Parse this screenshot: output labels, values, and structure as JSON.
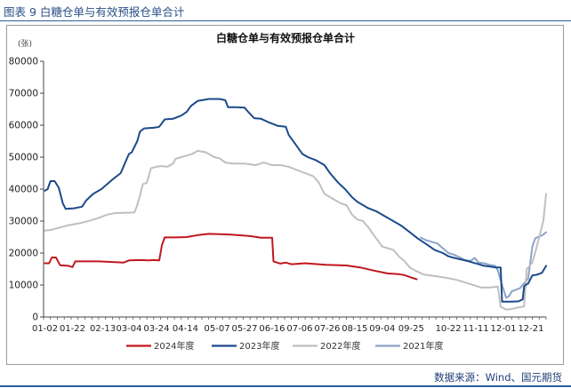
{
  "figure": {
    "title": "图表 9  白糖仓单与有效预报仓单合计",
    "source": "数据来源：Wind、国元期货"
  },
  "chart_data": {
    "type": "line",
    "title": "白糖仓单与有效预报仓单合计",
    "ylabel": "(张)",
    "xlabel": "",
    "ylim": [
      0,
      80000
    ],
    "yticks": [
      0,
      10000,
      20000,
      30000,
      40000,
      50000,
      60000,
      70000,
      80000
    ],
    "ytick_labels": [
      "0",
      "10000",
      "20000",
      "30000",
      "40000",
      "50000",
      "60000",
      "70000",
      "80000"
    ],
    "x_domain": [
      0,
      365
    ],
    "x_tick_labels": [
      "01-02",
      "01-22",
      "02-13",
      "03-04",
      "03-24",
      "04-14",
      "05-07",
      "05-27",
      "06-16",
      "07-06",
      "07-26",
      "08-15",
      "09-04",
      "09-25",
      "10-22",
      "11-11",
      "12-01",
      "12-21"
    ],
    "x_tick_positions": [
      1,
      21,
      43,
      62,
      82,
      103,
      126,
      146,
      166,
      186,
      206,
      226,
      246,
      267,
      294,
      314,
      334,
      354
    ],
    "grid": false,
    "legend_position": "bottom",
    "series": [
      {
        "name": "2024年度",
        "color": "#c0171f",
        "points": [
          [
            1,
            16800
          ],
          [
            4,
            16800
          ],
          [
            6,
            18600
          ],
          [
            9,
            18600
          ],
          [
            12,
            16200
          ],
          [
            18,
            16000
          ],
          [
            21,
            15600
          ],
          [
            23,
            17400
          ],
          [
            40,
            17400
          ],
          [
            50,
            17200
          ],
          [
            58,
            17000
          ],
          [
            62,
            17700
          ],
          [
            70,
            17800
          ],
          [
            76,
            17700
          ],
          [
            80,
            17800
          ],
          [
            84,
            17700
          ],
          [
            86,
            22500
          ],
          [
            88,
            24900
          ],
          [
            96,
            24900
          ],
          [
            104,
            25000
          ],
          [
            112,
            25600
          ],
          [
            120,
            26000
          ],
          [
            135,
            25800
          ],
          [
            150,
            25300
          ],
          [
            158,
            24800
          ],
          [
            166,
            24800
          ],
          [
            167,
            17400
          ],
          [
            172,
            16700
          ],
          [
            176,
            17000
          ],
          [
            180,
            16500
          ],
          [
            190,
            16800
          ],
          [
            205,
            16300
          ],
          [
            220,
            16100
          ],
          [
            230,
            15500
          ],
          [
            240,
            14500
          ],
          [
            250,
            13600
          ],
          [
            258,
            13400
          ],
          [
            262,
            13100
          ],
          [
            268,
            12200
          ],
          [
            271,
            11800
          ]
        ]
      },
      {
        "name": "2023年度",
        "color": "#1c4a8a",
        "points": [
          [
            1,
            39500
          ],
          [
            3,
            40000
          ],
          [
            5,
            42500
          ],
          [
            8,
            42500
          ],
          [
            11,
            40500
          ],
          [
            14,
            35500
          ],
          [
            16,
            33800
          ],
          [
            22,
            34000
          ],
          [
            28,
            34500
          ],
          [
            31,
            36500
          ],
          [
            36,
            38500
          ],
          [
            42,
            40000
          ],
          [
            50,
            43000
          ],
          [
            56,
            45000
          ],
          [
            59,
            48000
          ],
          [
            62,
            51000
          ],
          [
            64,
            51500
          ],
          [
            68,
            55000
          ],
          [
            70,
            58000
          ],
          [
            73,
            59000
          ],
          [
            80,
            59200
          ],
          [
            84,
            59500
          ],
          [
            88,
            61800
          ],
          [
            94,
            62000
          ],
          [
            100,
            63000
          ],
          [
            104,
            64200
          ],
          [
            107,
            66000
          ],
          [
            112,
            67600
          ],
          [
            120,
            68200
          ],
          [
            128,
            68200
          ],
          [
            132,
            67800
          ],
          [
            134,
            65600
          ],
          [
            140,
            65600
          ],
          [
            146,
            65500
          ],
          [
            149,
            64000
          ],
          [
            153,
            62200
          ],
          [
            158,
            62000
          ],
          [
            163,
            61000
          ],
          [
            170,
            59800
          ],
          [
            176,
            59500
          ],
          [
            178,
            57000
          ],
          [
            183,
            54000
          ],
          [
            188,
            51000
          ],
          [
            192,
            50000
          ],
          [
            198,
            49000
          ],
          [
            204,
            47500
          ],
          [
            208,
            45000
          ],
          [
            214,
            42000
          ],
          [
            219,
            40000
          ],
          [
            224,
            37500
          ],
          [
            228,
            36000
          ],
          [
            232,
            35000
          ],
          [
            236,
            34000
          ],
          [
            242,
            33000
          ],
          [
            248,
            31500
          ],
          [
            254,
            30000
          ],
          [
            260,
            28500
          ],
          [
            266,
            26500
          ],
          [
            272,
            24500
          ],
          [
            278,
            22800
          ],
          [
            284,
            21000
          ],
          [
            290,
            20000
          ],
          [
            294,
            19000
          ],
          [
            298,
            18500
          ],
          [
            303,
            18000
          ],
          [
            308,
            17500
          ],
          [
            312,
            17000
          ],
          [
            316,
            16500
          ],
          [
            320,
            16000
          ],
          [
            324,
            15800
          ],
          [
            328,
            15500
          ],
          [
            332,
            15500
          ],
          [
            333,
            4800
          ],
          [
            340,
            4800
          ],
          [
            345,
            4900
          ],
          [
            348,
            5500
          ],
          [
            349,
            9500
          ],
          [
            350,
            10000
          ],
          [
            352,
            10500
          ],
          [
            355,
            13000
          ],
          [
            358,
            13200
          ],
          [
            362,
            13800
          ],
          [
            365,
            16000
          ]
        ]
      },
      {
        "name": "2022年度",
        "color": "#bfbfbf",
        "points": [
          [
            1,
            27000
          ],
          [
            6,
            27300
          ],
          [
            12,
            28000
          ],
          [
            18,
            28700
          ],
          [
            22,
            29000
          ],
          [
            28,
            29500
          ],
          [
            34,
            30200
          ],
          [
            40,
            31000
          ],
          [
            46,
            32000
          ],
          [
            52,
            32500
          ],
          [
            60,
            32600
          ],
          [
            66,
            32700
          ],
          [
            68,
            35000
          ],
          [
            70,
            38000
          ],
          [
            72,
            41500
          ],
          [
            75,
            42000
          ],
          [
            78,
            46500
          ],
          [
            82,
            47000
          ],
          [
            86,
            47200
          ],
          [
            90,
            47000
          ],
          [
            94,
            48000
          ],
          [
            96,
            49500
          ],
          [
            100,
            50000
          ],
          [
            104,
            50500
          ],
          [
            108,
            51000
          ],
          [
            112,
            52000
          ],
          [
            118,
            51500
          ],
          [
            124,
            50000
          ],
          [
            128,
            49600
          ],
          [
            132,
            48300
          ],
          [
            138,
            48000
          ],
          [
            146,
            48000
          ],
          [
            154,
            47500
          ],
          [
            160,
            48300
          ],
          [
            166,
            47500
          ],
          [
            172,
            47500
          ],
          [
            178,
            47000
          ],
          [
            184,
            46000
          ],
          [
            190,
            45000
          ],
          [
            196,
            44000
          ],
          [
            200,
            42000
          ],
          [
            204,
            38500
          ],
          [
            208,
            37500
          ],
          [
            212,
            36500
          ],
          [
            216,
            35500
          ],
          [
            220,
            35000
          ],
          [
            224,
            32000
          ],
          [
            228,
            30500
          ],
          [
            232,
            30000
          ],
          [
            236,
            28000
          ],
          [
            240,
            25500
          ],
          [
            244,
            23200
          ],
          [
            246,
            22000
          ],
          [
            250,
            21500
          ],
          [
            254,
            21000
          ],
          [
            258,
            19000
          ],
          [
            262,
            17500
          ],
          [
            266,
            15500
          ],
          [
            270,
            14500
          ],
          [
            276,
            13300
          ],
          [
            284,
            12800
          ],
          [
            292,
            12300
          ],
          [
            300,
            11600
          ],
          [
            306,
            10800
          ],
          [
            312,
            10000
          ],
          [
            318,
            9200
          ],
          [
            324,
            9200
          ],
          [
            330,
            9500
          ],
          [
            332,
            3200
          ],
          [
            336,
            2300
          ],
          [
            340,
            2500
          ],
          [
            345,
            3000
          ],
          [
            349,
            3300
          ],
          [
            351,
            15000
          ],
          [
            355,
            17000
          ],
          [
            357,
            20000
          ],
          [
            360,
            25000
          ],
          [
            363,
            30000
          ],
          [
            365,
            38500
          ]
        ]
      },
      {
        "name": "2021年度",
        "color": "#8aa3c8",
        "points": [
          [
            274,
            24800
          ],
          [
            278,
            24000
          ],
          [
            282,
            23500
          ],
          [
            286,
            23000
          ],
          [
            290,
            21500
          ],
          [
            294,
            20000
          ],
          [
            298,
            19500
          ],
          [
            303,
            18500
          ],
          [
            306,
            17800
          ],
          [
            310,
            17500
          ],
          [
            313,
            18500
          ],
          [
            316,
            17000
          ],
          [
            320,
            16800
          ],
          [
            324,
            16300
          ],
          [
            328,
            16000
          ],
          [
            330,
            14500
          ],
          [
            333,
            10000
          ],
          [
            336,
            6000
          ],
          [
            338,
            6500
          ],
          [
            340,
            8000
          ],
          [
            343,
            8500
          ],
          [
            346,
            9000
          ],
          [
            349,
            10500
          ],
          [
            352,
            12000
          ],
          [
            355,
            22000
          ],
          [
            357,
            24500
          ],
          [
            359,
            25000
          ],
          [
            362,
            25500
          ],
          [
            365,
            26500
          ]
        ]
      }
    ]
  }
}
